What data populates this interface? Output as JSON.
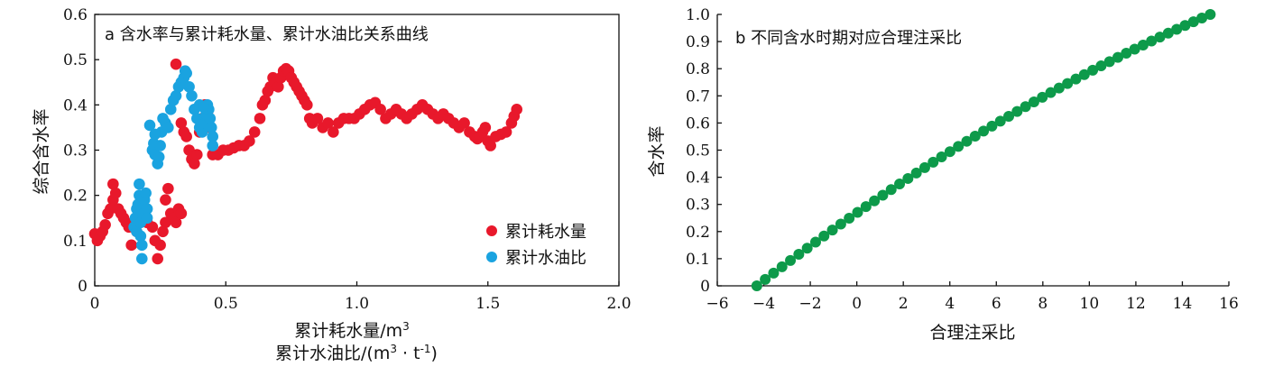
{
  "chart_data": [
    {
      "type": "scatter",
      "title": "a 含水率与累计耗水量、累计水油比关系曲线",
      "ylabel": "综合含水率",
      "xlabel_line1": "累计耗水量/m",
      "xlabel_line1_sup": "3",
      "xlabel_line2_parts": [
        "累计水油比/(m",
        "3",
        " · t",
        "-1",
        ")"
      ],
      "xlim": [
        0,
        2.0
      ],
      "ylim": [
        0,
        0.6
      ],
      "x_ticks": [
        "0",
        "0.5",
        "1.0",
        "1.5",
        "2.0"
      ],
      "y_ticks": [
        "0",
        "0.1",
        "0.2",
        "0.3",
        "0.4",
        "0.5",
        "0.6"
      ],
      "legend_position": "bottom-right",
      "series": [
        {
          "name": "累计耗水量",
          "color": "#e8182b",
          "points": [
            [
              0.0,
              0.115
            ],
            [
              0.01,
              0.1
            ],
            [
              0.02,
              0.11
            ],
            [
              0.03,
              0.12
            ],
            [
              0.04,
              0.135
            ],
            [
              0.05,
              0.16
            ],
            [
              0.06,
              0.17
            ],
            [
              0.07,
              0.19
            ],
            [
              0.07,
              0.225
            ],
            [
              0.08,
              0.205
            ],
            [
              0.09,
              0.17
            ],
            [
              0.1,
              0.16
            ],
            [
              0.11,
              0.15
            ],
            [
              0.12,
              0.14
            ],
            [
              0.13,
              0.13
            ],
            [
              0.14,
              0.09
            ],
            [
              0.16,
              0.12
            ],
            [
              0.18,
              0.15
            ],
            [
              0.2,
              0.14
            ],
            [
              0.22,
              0.13
            ],
            [
              0.23,
              0.1
            ],
            [
              0.24,
              0.06
            ],
            [
              0.25,
              0.09
            ],
            [
              0.26,
              0.12
            ],
            [
              0.27,
              0.14
            ],
            [
              0.27,
              0.19
            ],
            [
              0.28,
              0.215
            ],
            [
              0.29,
              0.16
            ],
            [
              0.3,
              0.15
            ],
            [
              0.31,
              0.14
            ],
            [
              0.32,
              0.17
            ],
            [
              0.33,
              0.16
            ],
            [
              0.31,
              0.49
            ],
            [
              0.33,
              0.36
            ],
            [
              0.34,
              0.34
            ],
            [
              0.35,
              0.33
            ],
            [
              0.36,
              0.3
            ],
            [
              0.37,
              0.28
            ],
            [
              0.38,
              0.27
            ],
            [
              0.39,
              0.29
            ],
            [
              0.4,
              0.34
            ],
            [
              0.41,
              0.37
            ],
            [
              0.42,
              0.4
            ],
            [
              0.43,
              0.38
            ],
            [
              0.44,
              0.35
            ],
            [
              0.45,
              0.29
            ],
            [
              0.47,
              0.29
            ],
            [
              0.49,
              0.3
            ],
            [
              0.51,
              0.3
            ],
            [
              0.53,
              0.305
            ],
            [
              0.55,
              0.31
            ],
            [
              0.57,
              0.31
            ],
            [
              0.59,
              0.32
            ],
            [
              0.61,
              0.34
            ],
            [
              0.63,
              0.37
            ],
            [
              0.64,
              0.4
            ],
            [
              0.65,
              0.41
            ],
            [
              0.66,
              0.43
            ],
            [
              0.67,
              0.44
            ],
            [
              0.68,
              0.46
            ],
            [
              0.69,
              0.45
            ],
            [
              0.7,
              0.44
            ],
            [
              0.71,
              0.46
            ],
            [
              0.72,
              0.475
            ],
            [
              0.73,
              0.48
            ],
            [
              0.74,
              0.475
            ],
            [
              0.75,
              0.46
            ],
            [
              0.76,
              0.45
            ],
            [
              0.77,
              0.44
            ],
            [
              0.78,
              0.43
            ],
            [
              0.79,
              0.42
            ],
            [
              0.8,
              0.41
            ],
            [
              0.81,
              0.4
            ],
            [
              0.82,
              0.37
            ],
            [
              0.83,
              0.36
            ],
            [
              0.85,
              0.37
            ],
            [
              0.87,
              0.35
            ],
            [
              0.89,
              0.36
            ],
            [
              0.91,
              0.34
            ],
            [
              0.93,
              0.36
            ],
            [
              0.95,
              0.37
            ],
            [
              0.97,
              0.37
            ],
            [
              0.99,
              0.37
            ],
            [
              1.01,
              0.38
            ],
            [
              1.03,
              0.39
            ],
            [
              1.05,
              0.4
            ],
            [
              1.07,
              0.405
            ],
            [
              1.09,
              0.39
            ],
            [
              1.11,
              0.37
            ],
            [
              1.13,
              0.38
            ],
            [
              1.15,
              0.39
            ],
            [
              1.17,
              0.38
            ],
            [
              1.19,
              0.37
            ],
            [
              1.21,
              0.38
            ],
            [
              1.23,
              0.39
            ],
            [
              1.25,
              0.4
            ],
            [
              1.27,
              0.39
            ],
            [
              1.29,
              0.38
            ],
            [
              1.31,
              0.37
            ],
            [
              1.33,
              0.38
            ],
            [
              1.35,
              0.37
            ],
            [
              1.37,
              0.36
            ],
            [
              1.39,
              0.35
            ],
            [
              1.41,
              0.36
            ],
            [
              1.43,
              0.34
            ],
            [
              1.45,
              0.33
            ],
            [
              1.46,
              0.325
            ],
            [
              1.47,
              0.33
            ],
            [
              1.48,
              0.34
            ],
            [
              1.49,
              0.35
            ],
            [
              1.5,
              0.32
            ],
            [
              1.51,
              0.31
            ],
            [
              1.53,
              0.33
            ],
            [
              1.55,
              0.335
            ],
            [
              1.57,
              0.34
            ],
            [
              1.59,
              0.36
            ],
            [
              1.6,
              0.375
            ],
            [
              1.61,
              0.39
            ]
          ]
        },
        {
          "name": "累计水油比",
          "color": "#1aa3e0",
          "points": [
            [
              0.15,
              0.13
            ],
            [
              0.155,
              0.15
            ],
            [
              0.16,
              0.12
            ],
            [
              0.16,
              0.17
            ],
            [
              0.165,
              0.18
            ],
            [
              0.17,
              0.2
            ],
            [
              0.17,
              0.225
            ],
            [
              0.175,
              0.14
            ],
            [
              0.175,
              0.11
            ],
            [
              0.18,
              0.09
            ],
            [
              0.18,
              0.06
            ],
            [
              0.185,
              0.16
            ],
            [
              0.19,
              0.19
            ],
            [
              0.195,
              0.205
            ],
            [
              0.2,
              0.17
            ],
            [
              0.2,
              0.15
            ],
            [
              0.22,
              0.3
            ],
            [
              0.225,
              0.315
            ],
            [
              0.23,
              0.29
            ],
            [
              0.24,
              0.27
            ],
            [
              0.245,
              0.285
            ],
            [
              0.25,
              0.31
            ],
            [
              0.255,
              0.34
            ],
            [
              0.26,
              0.37
            ],
            [
              0.27,
              0.36
            ],
            [
              0.28,
              0.35
            ],
            [
              0.29,
              0.39
            ],
            [
              0.3,
              0.41
            ],
            [
              0.31,
              0.42
            ],
            [
              0.32,
              0.44
            ],
            [
              0.33,
              0.45
            ],
            [
              0.34,
              0.46
            ],
            [
              0.345,
              0.475
            ],
            [
              0.35,
              0.47
            ],
            [
              0.36,
              0.44
            ],
            [
              0.37,
              0.42
            ],
            [
              0.38,
              0.39
            ],
            [
              0.39,
              0.37
            ],
            [
              0.4,
              0.35
            ],
            [
              0.41,
              0.34
            ],
            [
              0.42,
              0.36
            ],
            [
              0.425,
              0.38
            ],
            [
              0.43,
              0.4
            ],
            [
              0.435,
              0.39
            ],
            [
              0.44,
              0.37
            ],
            [
              0.445,
              0.35
            ],
            [
              0.45,
              0.33
            ],
            [
              0.45,
              0.31
            ],
            [
              0.4,
              0.4
            ],
            [
              0.415,
              0.395
            ],
            [
              0.21,
              0.355
            ],
            [
              0.23,
              0.335
            ]
          ]
        }
      ]
    },
    {
      "type": "scatter",
      "title": "b 不同含水时期对应合理注采比",
      "ylabel": "含水率",
      "xlabel": "合理注采比",
      "xlim": [
        -6,
        16
      ],
      "ylim": [
        0,
        1.0
      ],
      "x_ticks": [
        "−6",
        "−4",
        "−2",
        "0",
        "2",
        "4",
        "6",
        "8",
        "10",
        "12",
        "14",
        "16"
      ],
      "y_ticks": [
        "0",
        "0.1",
        "0.2",
        "0.3",
        "0.4",
        "0.5",
        "0.6",
        "0.7",
        "0.8",
        "0.9",
        "1.0"
      ],
      "series": [
        {
          "color": "#0d9a4a",
          "x_start": -4.3,
          "x_end": 15.2,
          "y_start": 0.0,
          "y_end": 1.0,
          "count": 55
        }
      ]
    }
  ]
}
